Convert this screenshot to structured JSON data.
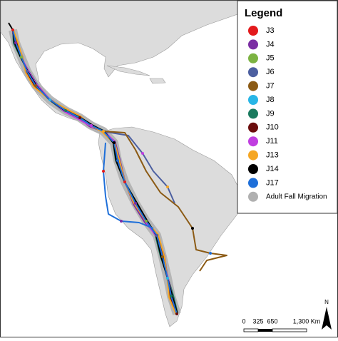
{
  "legend": {
    "title": "Legend",
    "items": [
      {
        "label": "J3",
        "color": "#e31a1c"
      },
      {
        "label": "J4",
        "color": "#7b2ea3"
      },
      {
        "label": "J5",
        "color": "#7cb342"
      },
      {
        "label": "J6",
        "color": "#4c5fa0"
      },
      {
        "label": "J7",
        "color": "#8b5a14"
      },
      {
        "label": "J8",
        "color": "#29b6e6"
      },
      {
        "label": "J9",
        "color": "#1a7a5e"
      },
      {
        "label": "J10",
        "color": "#6b0d0d"
      },
      {
        "label": "J11",
        "color": "#c03ee0"
      },
      {
        "label": "J13",
        "color": "#f5a623"
      },
      {
        "label": "J14",
        "color": "#000000"
      },
      {
        "label": "J17",
        "color": "#1e6fd9"
      },
      {
        "label": "Adult Fall Migration",
        "color": "#b0b0b0"
      }
    ]
  },
  "scale_bar": {
    "labels": [
      "0",
      "325",
      "650",
      "1,300 Km"
    ]
  },
  "north_arrow": {
    "label": "N"
  }
}
